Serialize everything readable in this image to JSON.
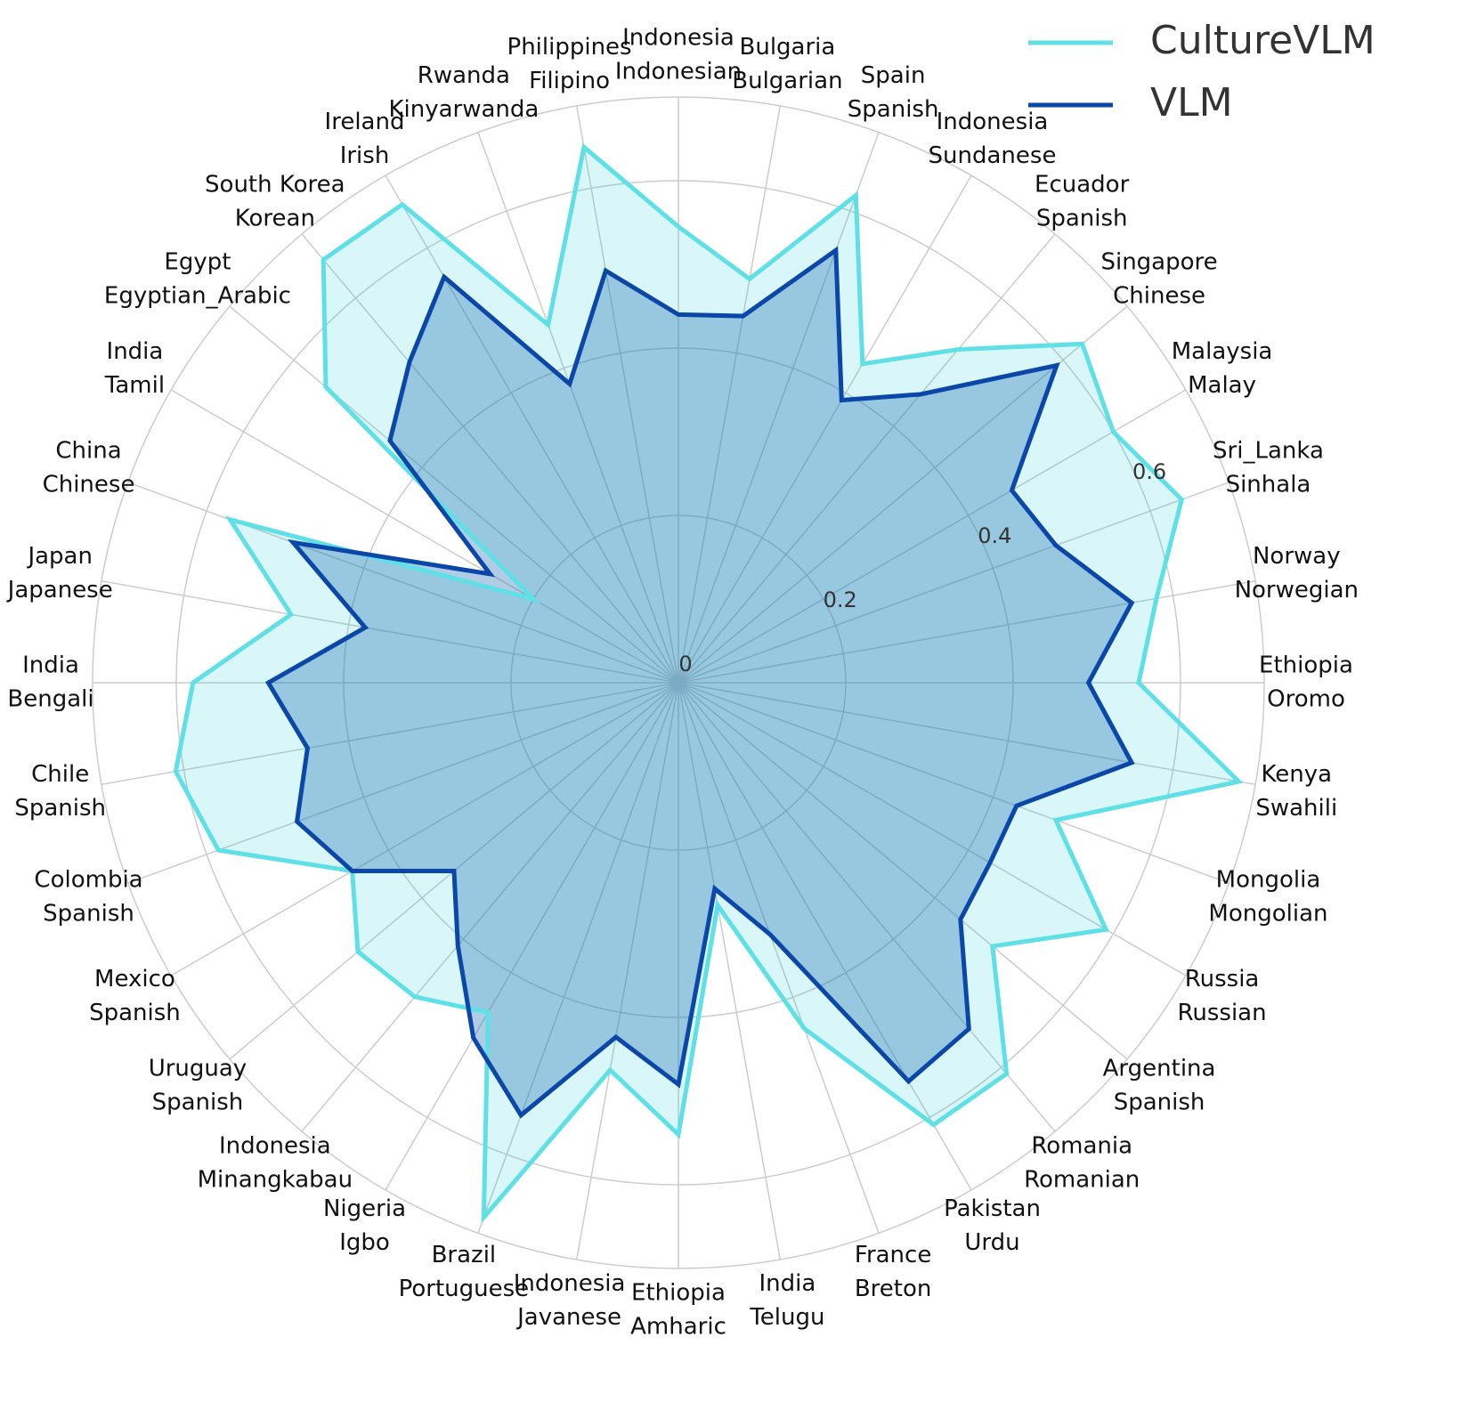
{
  "chart_data": {
    "type": "radar",
    "categories": [
      [
        "Ethiopia",
        "Oromo"
      ],
      [
        "Norway",
        "Norwegian"
      ],
      [
        "Sri_Lanka",
        "Sinhala"
      ],
      [
        "Malaysia",
        "Malay"
      ],
      [
        "Singapore",
        "Chinese"
      ],
      [
        "Ecuador",
        "Spanish"
      ],
      [
        "Indonesia",
        "Sundanese"
      ],
      [
        "Spain",
        "Spanish"
      ],
      [
        "Bulgaria",
        "Bulgarian"
      ],
      [
        "Indonesia",
        "Indonesian"
      ],
      [
        "Philippines",
        "Filipino"
      ],
      [
        "Rwanda",
        "Kinyarwanda"
      ],
      [
        "Ireland",
        "Irish"
      ],
      [
        "South Korea",
        "Korean"
      ],
      [
        "Egypt",
        "Egyptian_Arabic"
      ],
      [
        "India",
        "Tamil"
      ],
      [
        "China",
        "Chinese"
      ],
      [
        "Japan",
        "Japanese"
      ],
      [
        "India",
        "Bengali"
      ],
      [
        "Chile",
        "Spanish"
      ],
      [
        "Colombia",
        "Spanish"
      ],
      [
        "Mexico",
        "Spanish"
      ],
      [
        "Uruguay",
        "Spanish"
      ],
      [
        "Indonesia",
        "Minangkabau"
      ],
      [
        "Nigeria",
        "Igbo"
      ],
      [
        "Brazil",
        "Portuguese"
      ],
      [
        "Indonesia",
        "Javanese"
      ],
      [
        "Ethiopia",
        "Amharic"
      ],
      [
        "India",
        "Telugu"
      ],
      [
        "France",
        "Breton"
      ],
      [
        "Pakistan",
        "Urdu"
      ],
      [
        "Romania",
        "Romanian"
      ],
      [
        "Argentina",
        "Spanish"
      ],
      [
        "Russia",
        "Russian"
      ],
      [
        "Mongolia",
        "Mongolian"
      ],
      [
        "Kenya",
        "Swahili"
      ]
    ],
    "series": [
      {
        "name": "CultureVLM",
        "color": "#5fe0e6",
        "fill_color": "#00c8d0",
        "fill_opacity": 0.15,
        "values": [
          0.55,
          0.58,
          0.64,
          0.6,
          0.63,
          0.52,
          0.44,
          0.62,
          0.49,
          0.545,
          0.65,
          0.455,
          0.66,
          0.66,
          0.55,
          0.2,
          0.57,
          0.47,
          0.58,
          0.61,
          0.585,
          0.45,
          0.5,
          0.49,
          0.455,
          0.68,
          0.47,
          0.54,
          0.27,
          0.44,
          0.61,
          0.61,
          0.49,
          0.59,
          0.48,
          0.68
        ]
      },
      {
        "name": "VLM",
        "color": "#0a47a8",
        "fill_color": "#1f6fb4",
        "fill_opacity": 0.35,
        "values": [
          0.49,
          0.55,
          0.48,
          0.46,
          0.59,
          0.45,
          0.39,
          0.55,
          0.445,
          0.44,
          0.5,
          0.38,
          0.56,
          0.5,
          0.45,
          0.26,
          0.49,
          0.38,
          0.49,
          0.45,
          0.485,
          0.45,
          0.35,
          0.41,
          0.49,
          0.55,
          0.43,
          0.48,
          0.25,
          0.32,
          0.55,
          0.54,
          0.44,
          0.43,
          0.43,
          0.55
        ]
      }
    ],
    "ylim": [
      0,
      0.7
    ],
    "yticks": [
      0,
      0.2,
      0.4,
      0.6
    ],
    "grid": true,
    "legend": "upper right"
  }
}
